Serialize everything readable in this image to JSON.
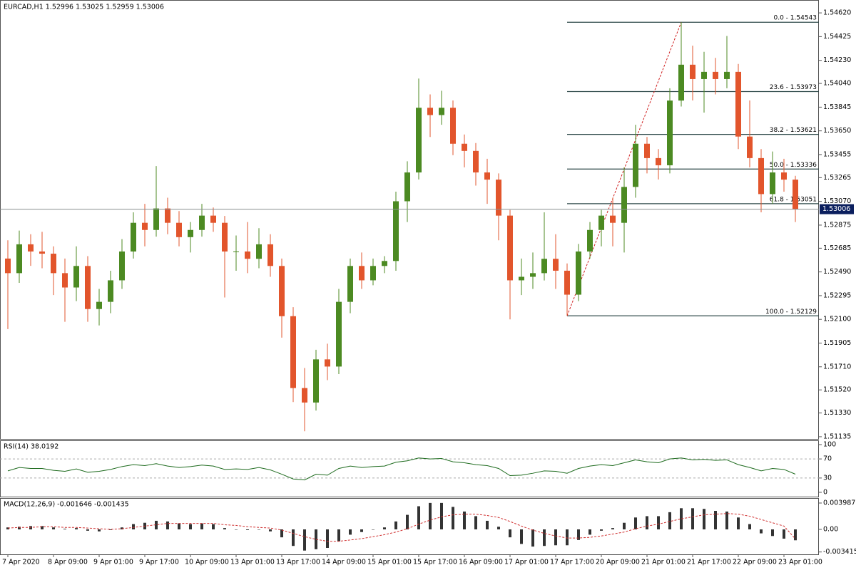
{
  "chart_data": {
    "type": "candlestick",
    "title": "EURCAD,H1  1.52996 1.53025 1.52959 1.53006",
    "categories": [
      "7 Apr 2020",
      null,
      null,
      null,
      "8 Apr 09:00",
      null,
      null,
      null,
      "9 Apr 01:00",
      null,
      null,
      null,
      "9 Apr 17:00",
      null,
      null,
      null,
      "10 Apr 09:00",
      null,
      null,
      null,
      "13 Apr 01:00",
      null,
      null,
      null,
      "13 Apr 17:00",
      null,
      null,
      null,
      "14 Apr 09:00",
      null,
      null,
      null,
      "15 Apr 01:00",
      null,
      null,
      null,
      "15 Apr 17:00",
      null,
      null,
      null,
      "16 Apr 09:00",
      null,
      null,
      null,
      "17 Apr 01:00",
      null,
      null,
      null,
      "17 Apr 17:00",
      null,
      null,
      null,
      "20 Apr 09:00",
      null,
      null,
      null,
      "21 Apr 01:00",
      null,
      null,
      null,
      "21 Apr 17:00",
      null,
      null,
      null,
      "22 Apr 09:00",
      null,
      null,
      null,
      "23 Apr 01:00",
      null
    ],
    "open": [
      1.526,
      1.5248,
      1.52717,
      1.52658,
      1.5264,
      1.5248,
      1.52362,
      1.52539,
      1.52185,
      1.52244,
      1.52421,
      1.52658,
      1.52894,
      1.52835,
      1.53012,
      1.52894,
      1.52776,
      1.52835,
      1.52953,
      1.52894,
      1.52658,
      1.52658,
      1.52598,
      1.52717,
      1.52539,
      1.52126,
      1.51535,
      1.51416,
      1.51771,
      1.51712,
      1.52244,
      1.52539,
      1.52421,
      1.52539,
      1.5258,
      1.53071,
      1.53308,
      1.5384,
      1.5378,
      1.5384,
      1.53544,
      1.53485,
      1.53308,
      1.53249,
      1.52953,
      1.52421,
      1.5245,
      1.5248,
      1.52598,
      1.525,
      1.52303,
      1.52658,
      1.52835,
      1.52953,
      1.52894,
      1.53189,
      1.53544,
      1.53426,
      1.53367,
      1.53899,
      1.54194,
      1.54076,
      1.54135,
      1.54076,
      1.54135,
      1.53603,
      1.53426,
      1.5313,
      1.53308,
      1.53249
    ],
    "high": [
      1.5275,
      1.5283,
      1.528,
      1.5282,
      1.527,
      1.526,
      1.527,
      1.5262,
      1.5235,
      1.525,
      1.5276,
      1.5298,
      1.5305,
      1.5336,
      1.531,
      1.5299,
      1.529,
      1.5305,
      1.5302,
      1.5295,
      1.5279,
      1.529,
      1.5285,
      1.528,
      1.526,
      1.522,
      1.517,
      1.5185,
      1.519,
      1.5235,
      1.526,
      1.5265,
      1.526,
      1.5262,
      1.5315,
      1.534,
      1.5408,
      1.5395,
      1.5398,
      1.539,
      1.5362,
      1.5355,
      1.5342,
      1.533,
      1.53,
      1.526,
      1.5265,
      1.5298,
      1.528,
      1.5256,
      1.5272,
      1.529,
      1.53,
      1.531,
      1.5335,
      1.537,
      1.536,
      1.535,
      1.54,
      1.54543,
      1.5435,
      1.543,
      1.5425,
      1.5443,
      1.542,
      1.539,
      1.535,
      1.5348,
      1.5342,
      1.5328
    ],
    "low": [
      1.5202,
      1.524,
      1.5254,
      1.5252,
      1.523,
      1.5208,
      1.5225,
      1.5208,
      1.5205,
      1.5215,
      1.5235,
      1.526,
      1.527,
      1.5278,
      1.528,
      1.527,
      1.5265,
      1.5278,
      1.5282,
      1.5228,
      1.525,
      1.5248,
      1.5252,
      1.5245,
      1.5195,
      1.5142,
      1.5118,
      1.5135,
      1.516,
      1.5165,
      1.5215,
      1.5235,
      1.5238,
      1.5248,
      1.525,
      1.529,
      1.5325,
      1.536,
      1.537,
      1.5345,
      1.5335,
      1.532,
      1.5305,
      1.5275,
      1.521,
      1.523,
      1.5235,
      1.5242,
      1.5235,
      1.52129,
      1.5225,
      1.526,
      1.527,
      1.527,
      1.5265,
      1.531,
      1.533,
      1.5325,
      1.533,
      1.5385,
      1.539,
      1.538,
      1.5395,
      1.54,
      1.535,
      1.5335,
      1.5298,
      1.5305,
      1.5315,
      1.529
    ],
    "close": [
      1.5248,
      1.52717,
      1.52658,
      1.5264,
      1.5248,
      1.52362,
      1.52539,
      1.52185,
      1.52244,
      1.52421,
      1.52658,
      1.52894,
      1.52835,
      1.53012,
      1.52894,
      1.52776,
      1.52835,
      1.52953,
      1.52894,
      1.52658,
      1.52658,
      1.52598,
      1.52717,
      1.52539,
      1.52126,
      1.51535,
      1.51416,
      1.51771,
      1.51712,
      1.52244,
      1.52539,
      1.52421,
      1.52539,
      1.5258,
      1.53071,
      1.53308,
      1.5384,
      1.5378,
      1.5384,
      1.53544,
      1.53485,
      1.53308,
      1.53249,
      1.52953,
      1.52421,
      1.5245,
      1.5248,
      1.52598,
      1.525,
      1.52303,
      1.52658,
      1.52835,
      1.52953,
      1.52894,
      1.53189,
      1.53544,
      1.53426,
      1.53367,
      1.53899,
      1.54194,
      1.54076,
      1.54135,
      1.54076,
      1.54135,
      1.53603,
      1.53426,
      1.5313,
      1.53308,
      1.53249,
      1.53006
    ],
    "up_color": "#4c8a22",
    "down_color": "#e2552c",
    "ylim": [
      1.51117,
      1.54726
    ],
    "yticks": [
      {
        "value": 1.5462,
        "label": "1.54620"
      },
      1.54425,
      {
        "value": 1.5423,
        "label": "1.54230"
      },
      {
        "value": 1.5404,
        "label": "1.54040"
      },
      1.53845,
      {
        "value": 1.5365,
        "label": "1.53650"
      },
      1.53455,
      1.53265,
      {
        "value": 1.5307,
        "label": "1.53070"
      },
      1.52875,
      1.52685,
      {
        "value": 1.5249,
        "label": "1.52490"
      },
      1.52295,
      {
        "value": 1.521,
        "label": "1.52100"
      },
      1.51905,
      {
        "value": 1.5171,
        "label": "1.51710"
      },
      {
        "value": 1.5152,
        "label": "1.51520"
      },
      {
        "value": 1.5133,
        "label": "1.51330"
      },
      1.51135
    ],
    "current_price": 1.53006,
    "fibonacci": {
      "color": "#2f4a4a",
      "trend_color": "#d02020",
      "levels": [
        {
          "label": "0.0 - 1.54543",
          "value": 1.54543
        },
        {
          "label": "23.6 - 1.53973",
          "value": 1.53973
        },
        {
          "label": "38.2 - 1.53621",
          "value": 1.53621
        },
        {
          "label": "50.0 - 1.53336",
          "value": 1.53336
        },
        {
          "label": "61.8 - 1.53051",
          "value": 1.53051
        },
        {
          "label": "100.0 - 1.52129",
          "value": 1.52129
        }
      ]
    },
    "rsi": {
      "title": "RSI(14) 38.0192",
      "color": "#1e6b1e",
      "values": [
        45,
        52,
        50,
        50,
        46,
        44,
        49,
        42,
        44,
        48,
        54,
        58,
        56,
        60,
        55,
        52,
        54,
        57,
        55,
        48,
        49,
        48,
        52,
        47,
        38,
        28,
        26,
        38,
        36,
        50,
        55,
        52,
        54,
        55,
        63,
        66,
        72,
        70,
        71,
        64,
        62,
        58,
        56,
        50,
        35,
        36,
        40,
        45,
        44,
        40,
        50,
        55,
        58,
        56,
        62,
        68,
        64,
        62,
        70,
        72,
        68,
        69,
        67,
        68,
        58,
        52,
        45,
        50,
        48,
        38.0192
      ],
      "ylim": [
        -9,
        109
      ],
      "yticks": [
        100,
        70,
        30,
        0
      ],
      "dashed_levels": [
        70,
        30
      ]
    },
    "macd": {
      "title": "MACD(12,26,9) -0.001646 -0.001435",
      "color": "#333333",
      "signal_color": "#d03030",
      "values": [
        0.0003,
        0.0004,
        0.0005,
        0.0005,
        0.0003,
        0.0001,
        0.0002,
        -0.0002,
        -0.0003,
        -0.0001,
        0.0003,
        0.0008,
        0.001,
        0.0013,
        0.0012,
        0.0009,
        0.0008,
        0.0009,
        0.0008,
        0.0002,
        0.0,
        -0.0001,
        0.0,
        -0.0003,
        -0.0012,
        -0.0025,
        -0.0032,
        -0.003,
        -0.0028,
        -0.0018,
        -0.0008,
        -0.0004,
        0.0,
        0.0003,
        0.0012,
        0.0022,
        0.0035,
        0.004,
        0.004,
        0.0034,
        0.0027,
        0.002,
        0.0013,
        0.0004,
        -0.0012,
        -0.0022,
        -0.0026,
        -0.0025,
        -0.0024,
        -0.0024,
        -0.0016,
        -0.0008,
        -0.0002,
        0.0002,
        0.001,
        0.0018,
        0.002,
        0.002,
        0.0026,
        0.0032,
        0.0032,
        0.0031,
        0.0028,
        0.0027,
        0.0018,
        0.0008,
        -0.0006,
        -0.001,
        -0.0014,
        -0.001646
      ],
      "signal": [
        0.0002,
        0.0003,
        0.0003,
        0.0004,
        0.0004,
        0.0003,
        0.0003,
        0.0002,
        0.0001,
        0.0,
        0.0001,
        0.0003,
        0.0005,
        0.0007,
        0.0009,
        0.0009,
        0.0009,
        0.0009,
        0.0009,
        0.0007,
        0.0006,
        0.0004,
        0.0003,
        0.0002,
        -0.0001,
        -0.0006,
        -0.0011,
        -0.0015,
        -0.0018,
        -0.0018,
        -0.0016,
        -0.0014,
        -0.0011,
        -0.0008,
        -0.0004,
        0.0001,
        0.0008,
        0.0014,
        0.0019,
        0.0022,
        0.0023,
        0.0023,
        0.0021,
        0.0018,
        0.0012,
        0.0005,
        -0.0001,
        -0.0006,
        -0.001,
        -0.0013,
        -0.0013,
        -0.0012,
        -0.001,
        -0.0007,
        -0.0004,
        0.0001,
        0.0005,
        0.0008,
        0.0012,
        0.0016,
        0.0019,
        0.0022,
        0.0023,
        0.0024,
        0.0023,
        0.002,
        0.0015,
        0.001,
        0.0005,
        -0.001435
      ],
      "ylim": [
        -0.00377,
        0.00474
      ],
      "yticks": [
        0.003987,
        {
          "value": 0,
          "label": "0.00"
        },
        -0.003415
      ]
    }
  }
}
